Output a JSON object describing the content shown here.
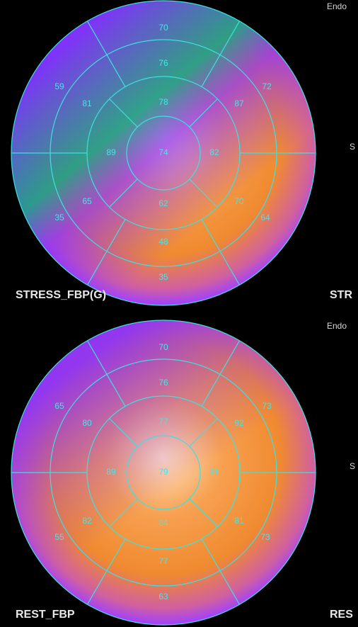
{
  "maps": [
    {
      "label": "STRESS_FBP(G)",
      "side_top": "Endo",
      "side_mid": "S",
      "side_bottom": "STR",
      "segments": [
        70,
        76,
        78,
        72,
        87,
        59,
        81,
        89,
        74,
        82,
        65,
        62,
        70,
        35,
        64,
        48,
        35
      ]
    },
    {
      "label": "REST_FBP",
      "side_top": "Endo",
      "side_mid": "S",
      "side_bottom": "RES",
      "segments": [
        70,
        76,
        77,
        73,
        92,
        65,
        80,
        89,
        79,
        91,
        82,
        84,
        81,
        55,
        73,
        77,
        63
      ]
    }
  ]
}
